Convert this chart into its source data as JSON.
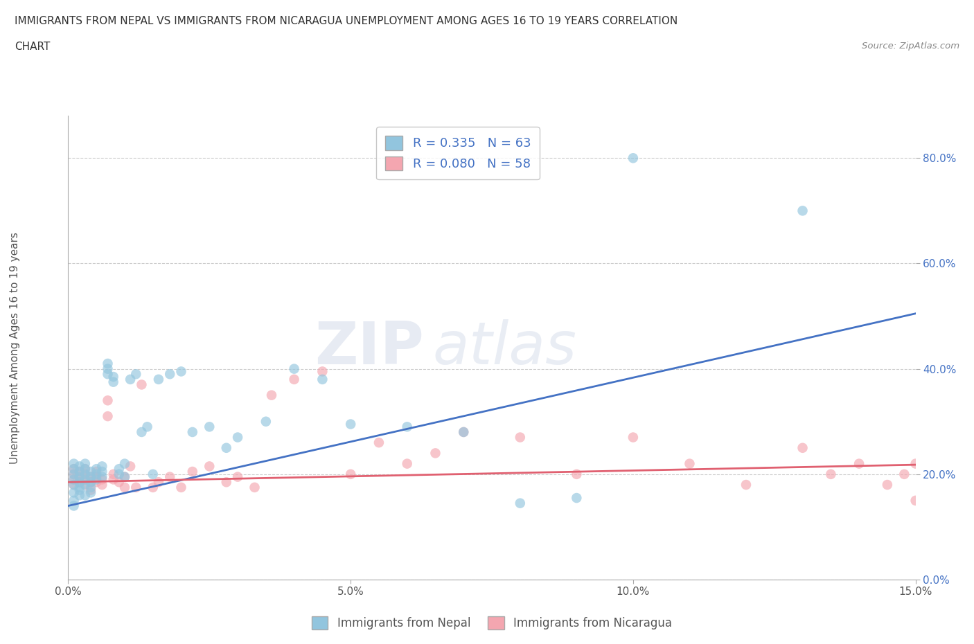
{
  "title_line1": "IMMIGRANTS FROM NEPAL VS IMMIGRANTS FROM NICARAGUA UNEMPLOYMENT AMONG AGES 16 TO 19 YEARS CORRELATION",
  "title_line2": "CHART",
  "source_text": "Source: ZipAtlas.com",
  "ylabel": "Unemployment Among Ages 16 to 19 years",
  "xlim": [
    0.0,
    0.15
  ],
  "ylim": [
    0.0,
    0.88
  ],
  "yticks": [
    0.0,
    0.2,
    0.4,
    0.6,
    0.8
  ],
  "ytick_labels": [
    "0.0%",
    "20.0%",
    "40.0%",
    "60.0%",
    "80.0%"
  ],
  "xticks": [
    0.0,
    0.05,
    0.1,
    0.15
  ],
  "xtick_labels": [
    "0.0%",
    "5.0%",
    "10.0%",
    "15.0%"
  ],
  "nepal_R": 0.335,
  "nepal_N": 63,
  "nicaragua_R": 0.08,
  "nicaragua_N": 58,
  "nepal_color": "#92c5de",
  "nicaragua_color": "#f4a6b0",
  "nepal_line_color": "#4472c4",
  "nicaragua_line_color": "#e06070",
  "watermark_zip": "ZIP",
  "watermark_atlas": "atlas",
  "legend_label_nepal": "Immigrants from Nepal",
  "legend_label_nicaragua": "Immigrants from Nicaragua",
  "nepal_scatter_x": [
    0.001,
    0.001,
    0.001,
    0.001,
    0.001,
    0.001,
    0.001,
    0.001,
    0.002,
    0.002,
    0.002,
    0.002,
    0.002,
    0.002,
    0.002,
    0.003,
    0.003,
    0.003,
    0.003,
    0.003,
    0.003,
    0.004,
    0.004,
    0.004,
    0.004,
    0.004,
    0.005,
    0.005,
    0.005,
    0.006,
    0.006,
    0.006,
    0.007,
    0.007,
    0.007,
    0.008,
    0.008,
    0.009,
    0.009,
    0.01,
    0.01,
    0.011,
    0.012,
    0.013,
    0.014,
    0.015,
    0.016,
    0.018,
    0.02,
    0.022,
    0.025,
    0.028,
    0.03,
    0.035,
    0.04,
    0.045,
    0.05,
    0.06,
    0.07,
    0.08,
    0.09,
    0.1,
    0.13
  ],
  "nepal_scatter_y": [
    0.165,
    0.18,
    0.19,
    0.2,
    0.21,
    0.22,
    0.15,
    0.14,
    0.175,
    0.185,
    0.195,
    0.205,
    0.215,
    0.17,
    0.16,
    0.18,
    0.19,
    0.2,
    0.21,
    0.22,
    0.16,
    0.185,
    0.195,
    0.205,
    0.175,
    0.165,
    0.19,
    0.2,
    0.21,
    0.195,
    0.205,
    0.215,
    0.39,
    0.4,
    0.41,
    0.375,
    0.385,
    0.2,
    0.21,
    0.195,
    0.22,
    0.38,
    0.39,
    0.28,
    0.29,
    0.2,
    0.38,
    0.39,
    0.395,
    0.28,
    0.29,
    0.25,
    0.27,
    0.3,
    0.4,
    0.38,
    0.295,
    0.29,
    0.28,
    0.145,
    0.155,
    0.8,
    0.7
  ],
  "nicaragua_scatter_x": [
    0.001,
    0.001,
    0.001,
    0.001,
    0.002,
    0.002,
    0.002,
    0.003,
    0.003,
    0.003,
    0.003,
    0.004,
    0.004,
    0.004,
    0.005,
    0.005,
    0.005,
    0.006,
    0.006,
    0.007,
    0.007,
    0.008,
    0.008,
    0.009,
    0.01,
    0.01,
    0.011,
    0.012,
    0.013,
    0.015,
    0.016,
    0.018,
    0.02,
    0.022,
    0.025,
    0.028,
    0.03,
    0.033,
    0.036,
    0.04,
    0.045,
    0.05,
    0.055,
    0.06,
    0.065,
    0.07,
    0.08,
    0.09,
    0.1,
    0.11,
    0.12,
    0.13,
    0.135,
    0.14,
    0.145,
    0.148,
    0.15,
    0.15
  ],
  "nicaragua_scatter_y": [
    0.18,
    0.19,
    0.2,
    0.21,
    0.185,
    0.195,
    0.205,
    0.18,
    0.19,
    0.2,
    0.21,
    0.185,
    0.195,
    0.17,
    0.185,
    0.195,
    0.205,
    0.18,
    0.19,
    0.31,
    0.34,
    0.19,
    0.2,
    0.185,
    0.175,
    0.195,
    0.215,
    0.175,
    0.37,
    0.175,
    0.185,
    0.195,
    0.175,
    0.205,
    0.215,
    0.185,
    0.195,
    0.175,
    0.35,
    0.38,
    0.395,
    0.2,
    0.26,
    0.22,
    0.24,
    0.28,
    0.27,
    0.2,
    0.27,
    0.22,
    0.18,
    0.25,
    0.2,
    0.22,
    0.18,
    0.2,
    0.22,
    0.15
  ],
  "nepal_regline_x": [
    0.0,
    0.15
  ],
  "nepal_regline_y": [
    0.14,
    0.505
  ],
  "nicaragua_regline_x": [
    0.0,
    0.15
  ],
  "nicaragua_regline_y": [
    0.185,
    0.218
  ],
  "grid_color": "#cccccc",
  "background_color": "#ffffff"
}
